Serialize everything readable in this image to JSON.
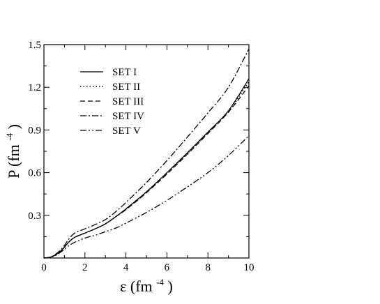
{
  "chart_data": {
    "type": "line",
    "xlabel": "ε (fm-4)",
    "ylabel": "P (fm-4)",
    "xlabel_parts": {
      "symbol": "ε",
      "open": "(fm",
      "exp": "-4",
      "close": ")"
    },
    "ylabel_parts": {
      "symbol": "P",
      "open": "(fm",
      "exp": "-4",
      "close": ")"
    },
    "xlim": [
      0,
      10
    ],
    "ylim": [
      0,
      1.5
    ],
    "xticks": [
      "0",
      "2",
      "4",
      "6",
      "8",
      "10"
    ],
    "yticks": [
      "0.3",
      "0.6",
      "0.9",
      "1.2",
      "1.5"
    ],
    "grid": false,
    "legend_position": "top-left",
    "series": [
      {
        "name": "SET I",
        "style": "solid",
        "points": [
          [
            0,
            0
          ],
          [
            0.3,
            0.005
          ],
          [
            0.6,
            0.025
          ],
          [
            0.9,
            0.06
          ],
          [
            1.2,
            0.11
          ],
          [
            1.5,
            0.145
          ],
          [
            2,
            0.175
          ],
          [
            2.5,
            0.205
          ],
          [
            3,
            0.24
          ],
          [
            3.5,
            0.29
          ],
          [
            4,
            0.345
          ],
          [
            5,
            0.465
          ],
          [
            6,
            0.6
          ],
          [
            7,
            0.74
          ],
          [
            8,
            0.885
          ],
          [
            9,
            1.035
          ],
          [
            10,
            1.26
          ]
        ]
      },
      {
        "name": "SET II",
        "style": "dotted",
        "points": [
          [
            0,
            0
          ],
          [
            0.3,
            0.005
          ],
          [
            0.6,
            0.025
          ],
          [
            0.9,
            0.06
          ],
          [
            1.2,
            0.11
          ],
          [
            1.5,
            0.145
          ],
          [
            2,
            0.175
          ],
          [
            2.5,
            0.205
          ],
          [
            3,
            0.24
          ],
          [
            3.5,
            0.29
          ],
          [
            4,
            0.343
          ],
          [
            5,
            0.462
          ],
          [
            6,
            0.595
          ],
          [
            7,
            0.735
          ],
          [
            8,
            0.88
          ],
          [
            9,
            1.03
          ],
          [
            10,
            1.24
          ]
        ]
      },
      {
        "name": "SET III",
        "style": "dashed",
        "points": [
          [
            0,
            0
          ],
          [
            0.3,
            0.005
          ],
          [
            0.6,
            0.025
          ],
          [
            0.9,
            0.06
          ],
          [
            1.2,
            0.11
          ],
          [
            1.5,
            0.145
          ],
          [
            2,
            0.175
          ],
          [
            2.5,
            0.205
          ],
          [
            3,
            0.24
          ],
          [
            3.5,
            0.29
          ],
          [
            4,
            0.34
          ],
          [
            5,
            0.458
          ],
          [
            6,
            0.59
          ],
          [
            7,
            0.73
          ],
          [
            8,
            0.875
          ],
          [
            9,
            1.025
          ],
          [
            10,
            1.21
          ]
        ]
      },
      {
        "name": "SET IV",
        "style": "dashdot",
        "points": [
          [
            0,
            0
          ],
          [
            0.3,
            0.006
          ],
          [
            0.6,
            0.03
          ],
          [
            0.9,
            0.07
          ],
          [
            1.2,
            0.13
          ],
          [
            1.5,
            0.175
          ],
          [
            2,
            0.205
          ],
          [
            2.5,
            0.235
          ],
          [
            3,
            0.27
          ],
          [
            3.5,
            0.325
          ],
          [
            4,
            0.39
          ],
          [
            5,
            0.53
          ],
          [
            6,
            0.685
          ],
          [
            7,
            0.85
          ],
          [
            8,
            1.02
          ],
          [
            9,
            1.2
          ],
          [
            10,
            1.47
          ]
        ]
      },
      {
        "name": "SET V",
        "style": "dashdotdot",
        "points": [
          [
            0,
            0
          ],
          [
            0.3,
            0.004
          ],
          [
            0.6,
            0.02
          ],
          [
            0.9,
            0.05
          ],
          [
            1.2,
            0.085
          ],
          [
            1.5,
            0.11
          ],
          [
            2,
            0.14
          ],
          [
            2.5,
            0.16
          ],
          [
            3,
            0.185
          ],
          [
            3.5,
            0.21
          ],
          [
            4,
            0.245
          ],
          [
            5,
            0.32
          ],
          [
            6,
            0.405
          ],
          [
            7,
            0.5
          ],
          [
            8,
            0.6
          ],
          [
            9,
            0.72
          ],
          [
            10,
            0.86
          ]
        ]
      }
    ]
  }
}
